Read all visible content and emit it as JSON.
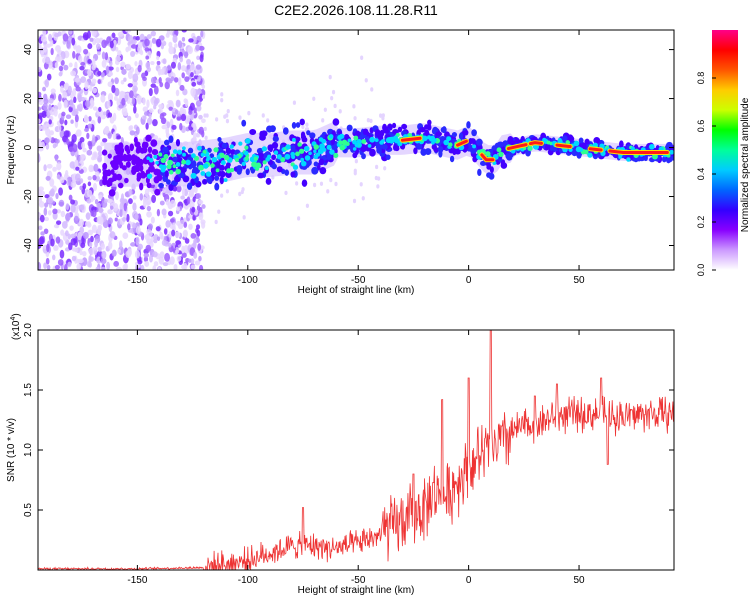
{
  "title": "C2E2.2026.108.11.28.R11",
  "chart_data": [
    {
      "type": "heatmap",
      "name": "spectrogram",
      "xlabel": "Height of straight line (km)",
      "ylabel": "Frequency (Hz)",
      "xlim": [
        -195,
        93
      ],
      "ylim": [
        -50,
        48
      ],
      "xticks": [
        -150,
        -100,
        -50,
        0,
        50
      ],
      "xtick_labels": [
        "-150",
        "-100",
        "-50",
        "0",
        "50"
      ],
      "yticks": [
        -40,
        -20,
        0,
        20,
        40
      ],
      "ytick_labels": [
        "-40",
        "-20",
        "0",
        "20",
        "40"
      ],
      "ridge": {
        "x": [
          -150,
          -140,
          -130,
          -120,
          -110,
          -100,
          -90,
          -80,
          -70,
          -60,
          -50,
          -40,
          -30,
          -20,
          -15,
          -10,
          -5,
          0,
          5,
          8,
          12,
          15,
          20,
          25,
          30,
          40,
          50,
          60,
          70,
          80,
          92
        ],
        "y": [
          -7,
          -6,
          -7,
          -6,
          -5,
          -3,
          -3,
          -2,
          -2,
          2,
          2,
          3,
          3,
          4,
          3,
          2,
          1,
          3,
          -2,
          -5,
          -5,
          -1,
          0,
          1,
          2,
          1,
          0,
          -1,
          -2,
          -2,
          -2
        ]
      },
      "note": "Dense scattered signal for heights below -120 km (noise region), concentrated ridge near 0 Hz above -150 km"
    },
    {
      "type": "line",
      "name": "snr",
      "xlabel": "Height of straight line (km)",
      "ylabel": "SNR (10 * v/v)",
      "scale_label": "(x10",
      "scale_exponent": "4",
      "scale_suffix": ")",
      "xlim": [
        -195,
        93
      ],
      "ylim": [
        0,
        2.0
      ],
      "xticks": [
        -150,
        -100,
        -50,
        0,
        50
      ],
      "xtick_labels": [
        "-150",
        "-100",
        "-50",
        "0",
        "50"
      ],
      "yticks": [
        0.5,
        1.0,
        1.5,
        2.0
      ],
      "ytick_labels": [
        "0.5",
        "1.0",
        "1.5",
        "2.0"
      ],
      "color": "#ee3333",
      "trend": {
        "x": [
          -195,
          -150,
          -120,
          -110,
          -100,
          -90,
          -80,
          -70,
          -60,
          -50,
          -40,
          -30,
          -20,
          -15,
          -10,
          -5,
          0,
          5,
          10,
          15,
          20,
          25,
          30,
          40,
          50,
          60,
          70,
          80,
          93
        ],
        "y": [
          0.01,
          0.01,
          0.02,
          0.05,
          0.08,
          0.14,
          0.2,
          0.2,
          0.18,
          0.22,
          0.3,
          0.4,
          0.52,
          0.65,
          0.6,
          0.75,
          0.85,
          0.95,
          1.0,
          1.05,
          1.15,
          1.2,
          1.22,
          1.28,
          1.3,
          1.3,
          1.28,
          1.3,
          1.3
        ]
      },
      "spikes": [
        {
          "x": -75,
          "y": 0.52
        },
        {
          "x": -25,
          "y": 0.8
        },
        {
          "x": -12,
          "y": 1.42
        },
        {
          "x": 0,
          "y": 1.6
        },
        {
          "x": 10,
          "y": 2.0
        },
        {
          "x": 15,
          "y": 1.2
        },
        {
          "x": 30,
          "y": 1.45
        },
        {
          "x": 40,
          "y": 1.55
        },
        {
          "x": 60,
          "y": 1.6
        },
        {
          "x": 63,
          "y": 0.88
        }
      ]
    }
  ],
  "colorbar": {
    "label": "Normalized spectral amplitude",
    "range": [
      0,
      1
    ],
    "ticks": [
      0.0,
      0.2,
      0.4,
      0.6,
      0.8
    ],
    "tick_labels": [
      "0.0",
      "0.2",
      "0.4",
      "0.6",
      "0.8"
    ],
    "colors": [
      "#ffffff",
      "#cc99ff",
      "#8800ff",
      "#3300ff",
      "#0066ff",
      "#00ccff",
      "#00ff99",
      "#00ff00",
      "#ccff00",
      "#ffcc00",
      "#ff5500",
      "#ff0000",
      "#ff0088"
    ]
  }
}
